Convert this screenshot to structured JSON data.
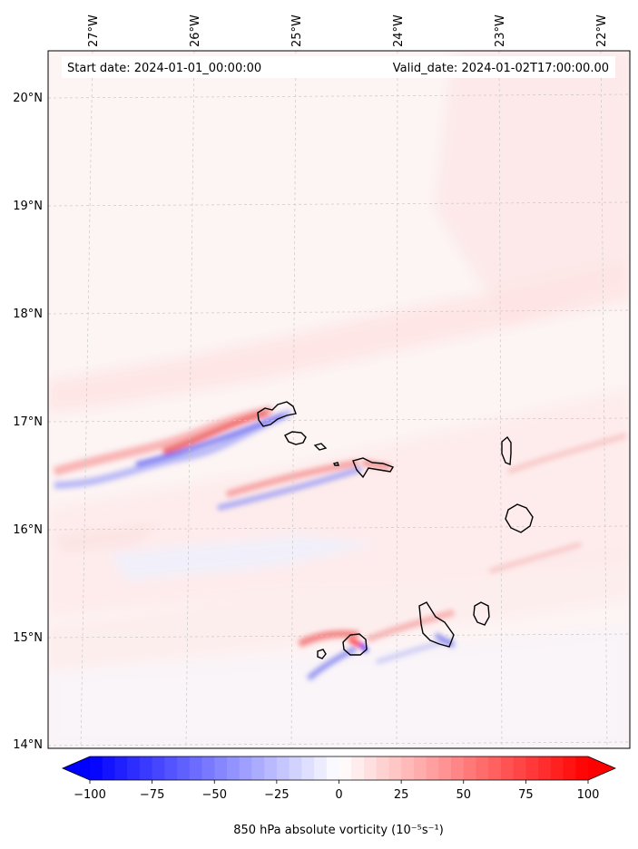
{
  "header": {
    "start_date": "Start date: 2024-01-01_00:00:00",
    "valid_date": "Valid_date: 2024-01-02T17:00:00.00"
  },
  "map": {
    "lon_labels": [
      "27°W",
      "26°W",
      "25°W",
      "24°W",
      "23°W",
      "22°W"
    ],
    "lat_labels": [
      "20°N",
      "19°N",
      "18°N",
      "17°N",
      "16°N",
      "15°N",
      "14°N"
    ],
    "lon_values": [
      -27,
      -26,
      -25,
      -24,
      -23,
      -22
    ],
    "lat_values": [
      20,
      19,
      18,
      17,
      16,
      15,
      14
    ],
    "gridlines": "dashed light gray",
    "field": "850 hPa absolute vorticity",
    "background_color": "#fdf2f2",
    "positive_color": "#ff0000",
    "negative_color": "#0000ff"
  },
  "colorbar": {
    "ticks": [
      "−100",
      "−75",
      "−50",
      "−25",
      "0",
      "25",
      "50",
      "75",
      "100"
    ],
    "tick_values": [
      -100,
      -75,
      -50,
      -25,
      0,
      25,
      50,
      75,
      100
    ],
    "min": -100,
    "max": 100,
    "label": "850 hPa absolute vorticity (10⁻⁵s⁻¹)",
    "extend": "both",
    "colormap": "bwr"
  }
}
